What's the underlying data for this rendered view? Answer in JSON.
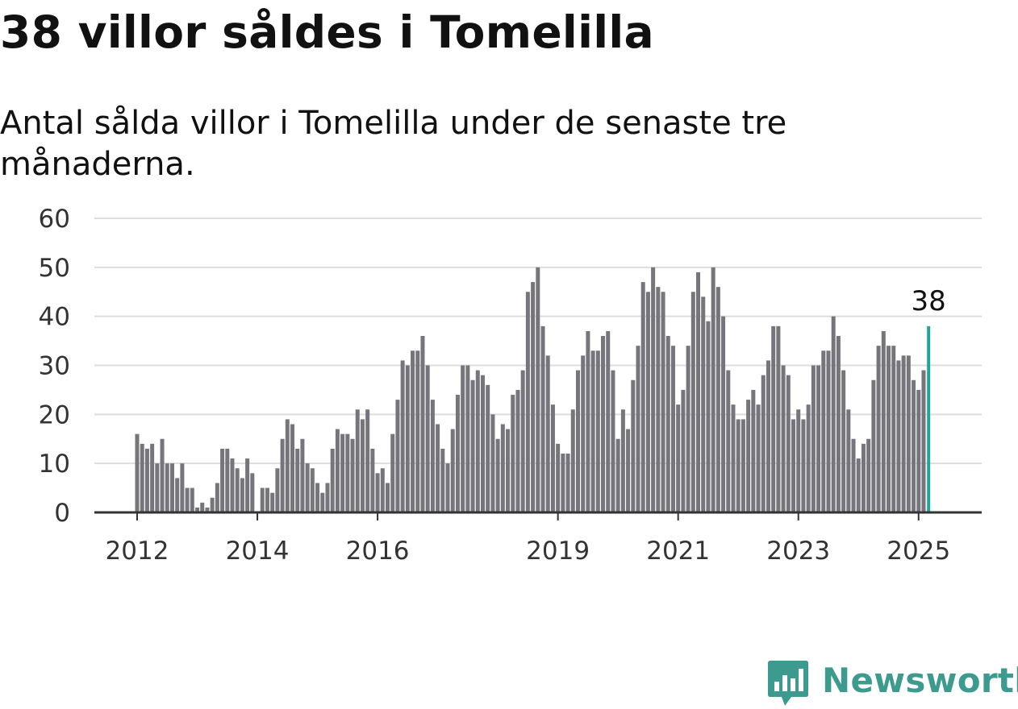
{
  "title": "38 villor såldes i Tomelilla",
  "subtitle": "Antal sålda villor i Tomelilla under de senaste tre månaderna.",
  "brand": {
    "name": "Newsworthy",
    "icon": "newsworthy-logo-icon",
    "color": "#3d9a8f"
  },
  "colors": {
    "bar": "#75757b",
    "highlight": "#1ba89a",
    "grid": "#dddddd",
    "axis": "#333333"
  },
  "chart_data": {
    "type": "bar",
    "title": "38 villor såldes i Tomelilla",
    "subtitle": "Antal sålda villor i Tomelilla under de senaste tre månaderna.",
    "xlabel": "",
    "ylabel": "",
    "ylim": [
      0,
      60
    ],
    "yticks": [
      "0",
      "10",
      "20",
      "30",
      "40",
      "50",
      "60"
    ],
    "xticks": [
      "2012",
      "2014",
      "2016",
      "2019",
      "2021",
      "2023",
      "2025"
    ],
    "grid": true,
    "start": "2012-01",
    "end": "2025-03",
    "highlight": {
      "x": "2025-03",
      "value": 38,
      "label": "38"
    },
    "values": [
      16,
      14,
      13,
      14,
      10,
      15,
      10,
      10,
      7,
      10,
      5,
      5,
      1,
      2,
      1,
      3,
      6,
      13,
      13,
      11,
      9,
      7,
      11,
      8,
      0,
      5,
      5,
      4,
      9,
      15,
      19,
      18,
      13,
      15,
      10,
      9,
      6,
      4,
      6,
      13,
      17,
      16,
      16,
      15,
      21,
      19,
      21,
      13,
      8,
      9,
      6,
      16,
      23,
      31,
      30,
      33,
      33,
      36,
      30,
      23,
      18,
      13,
      10,
      17,
      24,
      30,
      30,
      27,
      29,
      28,
      26,
      20,
      15,
      18,
      17,
      24,
      25,
      29,
      45,
      47,
      50,
      38,
      32,
      22,
      14,
      12,
      12,
      21,
      29,
      32,
      37,
      33,
      33,
      36,
      37,
      29,
      15,
      21,
      17,
      27,
      34,
      47,
      45,
      50,
      46,
      45,
      36,
      34,
      22,
      25,
      34,
      45,
      49,
      44,
      39,
      50,
      46,
      40,
      29,
      22,
      19,
      19,
      23,
      25,
      22,
      28,
      31,
      38,
      38,
      30,
      28,
      19,
      21,
      19,
      22,
      30,
      30,
      33,
      33,
      40,
      36,
      29,
      21,
      15,
      11,
      14,
      15,
      27,
      34,
      37,
      34,
      34,
      31,
      32,
      32,
      27,
      25,
      29,
      38
    ]
  }
}
